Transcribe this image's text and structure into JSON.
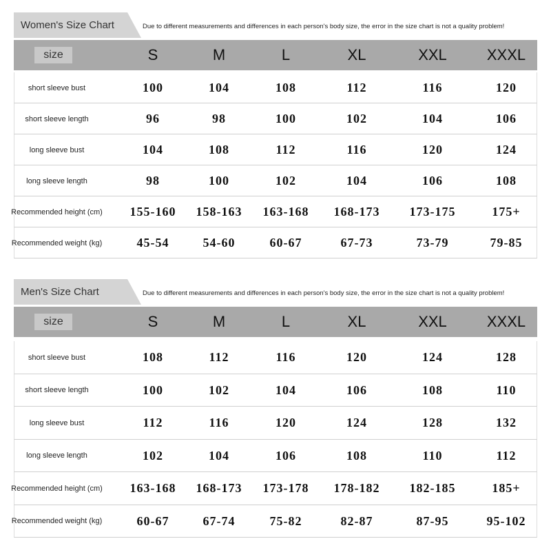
{
  "sections": [
    {
      "title": "Women's Size Chart",
      "note": "Due to different measurements and differences in each person's body size, the error in the size chart is not a quality problem!",
      "header": [
        "size",
        "S",
        "M",
        "L",
        "XL",
        "XXL",
        "XXXL"
      ],
      "rows": [
        [
          "short sleeve bust",
          100,
          104,
          108,
          112,
          116,
          120
        ],
        [
          "short sleeve length",
          96,
          98,
          100,
          102,
          104,
          106
        ],
        [
          "long sleeve bust",
          104,
          108,
          112,
          116,
          120,
          124
        ],
        [
          "long sleeve length",
          98,
          100,
          102,
          104,
          106,
          108
        ],
        [
          "Recommended height (cm)",
          "155-160",
          "158-163",
          "163-168",
          "168-173",
          "173-175",
          "175+"
        ],
        [
          "Recommended weight (kg)",
          "45-54",
          "54-60",
          "60-67",
          "67-73",
          "73-79",
          "79-85"
        ]
      ]
    },
    {
      "title": "Men's Size Chart",
      "note": "Due to different measurements and differences in each person's body size, the error in the size chart is not a quality problem!",
      "header": [
        "size",
        "S",
        "M",
        "L",
        "XL",
        "XXL",
        "XXXL"
      ],
      "rows": [
        [
          "short sleeve bust",
          108,
          112,
          116,
          120,
          124,
          128
        ],
        [
          "short sleeve length",
          100,
          102,
          104,
          106,
          108,
          110
        ],
        [
          "long sleeve bust",
          112,
          116,
          120,
          124,
          128,
          132
        ],
        [
          "long sleeve length",
          102,
          104,
          106,
          108,
          110,
          112
        ],
        [
          "Recommended height (cm)",
          "163-168",
          "168-173",
          "173-178",
          "178-182",
          "182-185",
          "185+"
        ],
        [
          "Recommended weight (kg)",
          "60-67",
          "67-74",
          "75-82",
          "82-87",
          "87-95",
          "95-102"
        ]
      ]
    }
  ]
}
